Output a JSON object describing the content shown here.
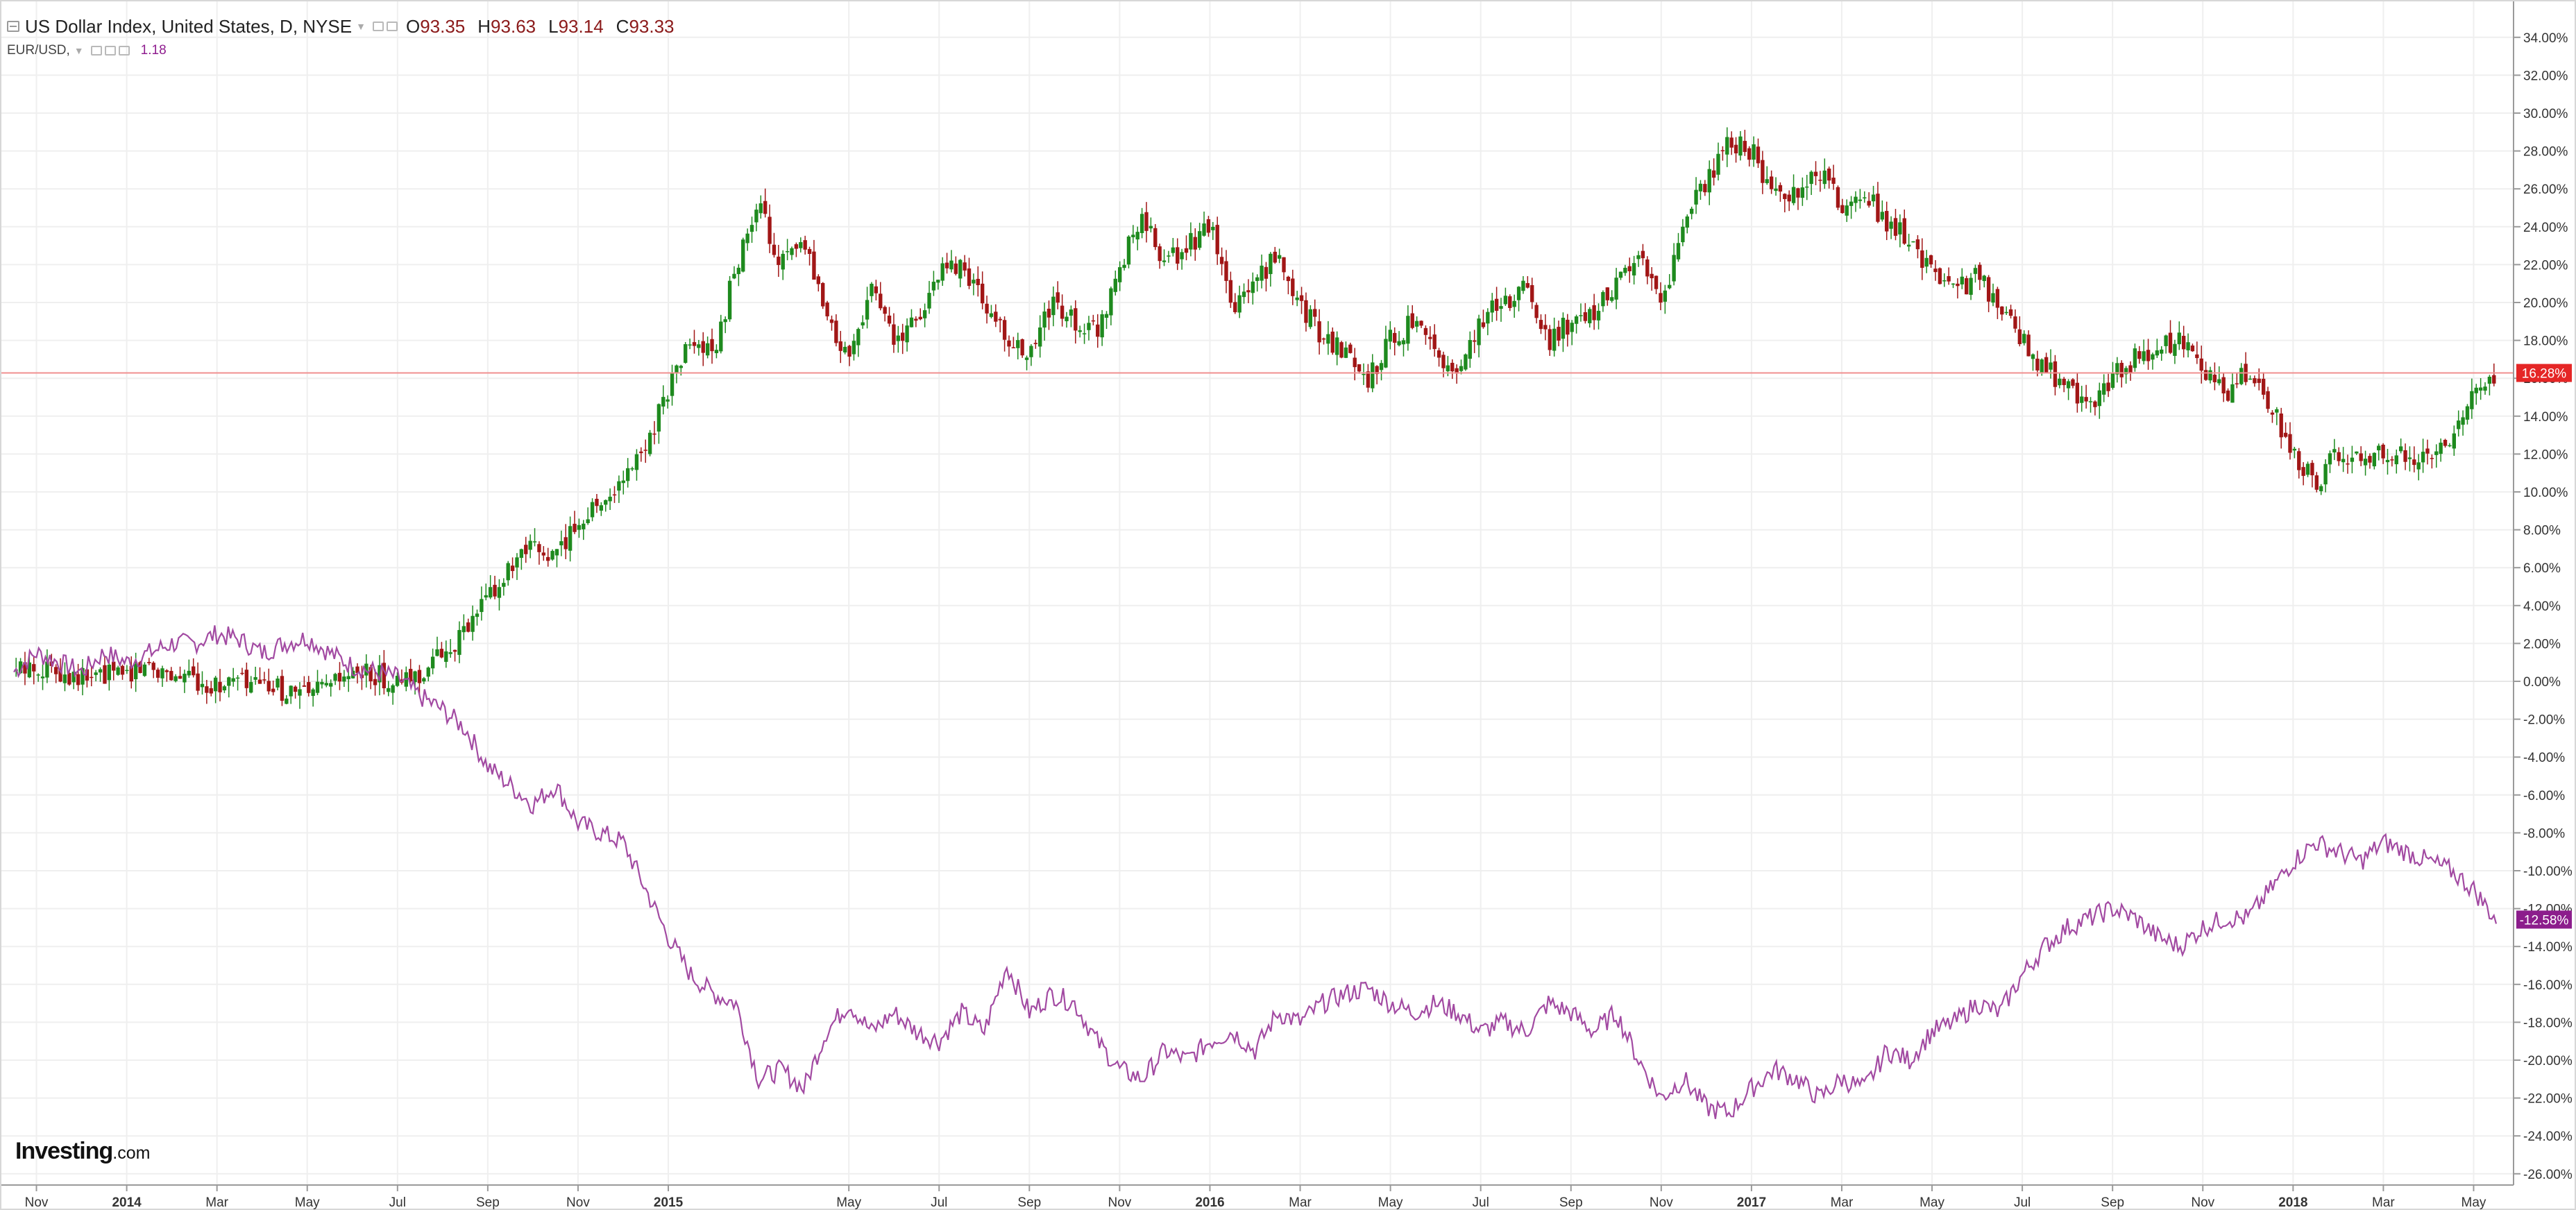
{
  "legend": {
    "symbol_title": "US Dollar Index, United States, D, NYSE",
    "ohlc": [
      {
        "key": "O",
        "value": "93.35"
      },
      {
        "key": "H",
        "value": "93.63"
      },
      {
        "key": "L",
        "value": "93.14"
      },
      {
        "key": "C",
        "value": "93.33"
      }
    ],
    "compare_symbol": "EUR/USD,",
    "compare_value": "1.18"
  },
  "branding": {
    "name": "Investing",
    "suffix": ".com"
  },
  "colors": {
    "up_candle": "#1e8a1e",
    "down_candle": "#a11616",
    "eurusd_line": "#a24aa2",
    "last_price_line": "#f08f8f",
    "last_badge_main": "#e52626",
    "last_badge_compare": "#8c1d8c"
  },
  "chart_data": {
    "type": "line",
    "title": "",
    "ylabel": "",
    "xlabel": "",
    "y_unit": "percent change",
    "ylim": [
      -26,
      35
    ],
    "y_ticks": [
      34,
      32,
      30,
      28,
      26,
      24,
      22,
      20,
      18,
      16,
      14,
      12,
      10,
      8,
      6,
      4,
      2,
      0,
      -2,
      -4,
      -6,
      -8,
      -10,
      -12,
      -14,
      -16,
      -18,
      -20,
      -22,
      -24,
      -26
    ],
    "y_tick_labels": [
      "34.00%",
      "32.00%",
      "30.00%",
      "28.00%",
      "26.00%",
      "24.00%",
      "22.00%",
      "20.00%",
      "18.00%",
      "16.00%",
      "14.00%",
      "12.00%",
      "10.00%",
      "8.00%",
      "6.00%",
      "4.00%",
      "2.00%",
      "0.00%",
      "-2.00%",
      "-4.00%",
      "-6.00%",
      "-8.00%",
      "-10.00%",
      "-12.00%",
      "-14.00%",
      "-16.00%",
      "-18.00%",
      "-20.00%",
      "-22.00%",
      "-24.00%",
      "-26.00%"
    ],
    "x_ticks": [
      {
        "label": "Nov",
        "t": 0.5
      },
      {
        "label": "2014",
        "t": 2.5,
        "bold": true
      },
      {
        "label": "Mar",
        "t": 4.5
      },
      {
        "label": "May",
        "t": 6.5
      },
      {
        "label": "Jul",
        "t": 8.5
      },
      {
        "label": "Sep",
        "t": 10.5
      },
      {
        "label": "Nov",
        "t": 12.5
      },
      {
        "label": "2015",
        "t": 14.5,
        "bold": true
      },
      {
        "label": "May",
        "t": 18.5
      },
      {
        "label": "Jul",
        "t": 20.5
      },
      {
        "label": "Sep",
        "t": 22.5
      },
      {
        "label": "Nov",
        "t": 24.5
      },
      {
        "label": "2016",
        "t": 26.5,
        "bold": true
      },
      {
        "label": "Mar",
        "t": 28.5
      },
      {
        "label": "May",
        "t": 30.5
      },
      {
        "label": "Jul",
        "t": 32.5
      },
      {
        "label": "Sep",
        "t": 34.5
      },
      {
        "label": "Nov",
        "t": 36.5
      },
      {
        "label": "2017",
        "t": 38.5,
        "bold": true
      },
      {
        "label": "Mar",
        "t": 40.5
      },
      {
        "label": "May",
        "t": 42.5
      },
      {
        "label": "Jul",
        "t": 44.5
      },
      {
        "label": "Sep",
        "t": 46.5
      },
      {
        "label": "Nov",
        "t": 48.5
      },
      {
        "label": "2018",
        "t": 50.5,
        "bold": true
      },
      {
        "label": "Mar",
        "t": 52.5
      },
      {
        "label": "May",
        "t": 54.5
      }
    ],
    "x_range_months": [
      0,
      55.2
    ],
    "mar_2015_note": "",
    "series": [
      {
        "name": "US Dollar Index",
        "style": "candlestick",
        "last_value_label": "16.28%",
        "last_value": 16.28,
        "points": [
          [
            0,
            0.5
          ],
          [
            0.5,
            0.8
          ],
          [
            1,
            0.6
          ],
          [
            1.5,
            0.2
          ],
          [
            2,
            0.3
          ],
          [
            2.5,
            0.5
          ],
          [
            3,
            0.9
          ],
          [
            3.5,
            0.4
          ],
          [
            4,
            0.1
          ],
          [
            4.5,
            -0.2
          ],
          [
            5,
            0.0
          ],
          [
            5.5,
            -0.3
          ],
          [
            6,
            -0.5
          ],
          [
            6.5,
            -0.8
          ],
          [
            7,
            -0.3
          ],
          [
            7.5,
            0.3
          ],
          [
            8,
            0.4
          ],
          [
            8.5,
            -0.2
          ],
          [
            9,
            0.4
          ],
          [
            9.5,
            1.5
          ],
          [
            10,
            2.5
          ],
          [
            10.5,
            4.5
          ],
          [
            11,
            5.8
          ],
          [
            11.5,
            7
          ],
          [
            12,
            6.5
          ],
          [
            12.5,
            8.5
          ],
          [
            13,
            9.5
          ],
          [
            13.5,
            10.5
          ],
          [
            14,
            12.5
          ],
          [
            14.5,
            15.5
          ],
          [
            15,
            18
          ],
          [
            15.5,
            17
          ],
          [
            16,
            22
          ],
          [
            16.5,
            25
          ],
          [
            17,
            22
          ],
          [
            17.5,
            23
          ],
          [
            18,
            19
          ],
          [
            18.5,
            17
          ],
          [
            19,
            21
          ],
          [
            19.5,
            18
          ],
          [
            20,
            19
          ],
          [
            20.5,
            21.5
          ],
          [
            21,
            22
          ],
          [
            21.5,
            20
          ],
          [
            22,
            18
          ],
          [
            22.5,
            17
          ],
          [
            23,
            20
          ],
          [
            23.5,
            19
          ],
          [
            24,
            18.5
          ],
          [
            24.5,
            22
          ],
          [
            25,
            24.5
          ],
          [
            25.5,
            22
          ],
          [
            26,
            23
          ],
          [
            26.5,
            24
          ],
          [
            27,
            19.5
          ],
          [
            27.5,
            21
          ],
          [
            28,
            22.5
          ],
          [
            28.5,
            20
          ],
          [
            29,
            18
          ],
          [
            29.5,
            17.5
          ],
          [
            30,
            16
          ],
          [
            30.5,
            18
          ],
          [
            31,
            19
          ],
          [
            31.5,
            17
          ],
          [
            32,
            16.5
          ],
          [
            32.5,
            19
          ],
          [
            33,
            20
          ],
          [
            33.5,
            21
          ],
          [
            34,
            18
          ],
          [
            34.5,
            19
          ],
          [
            35,
            19.5
          ],
          [
            35.5,
            21
          ],
          [
            36,
            23
          ],
          [
            36.5,
            20
          ],
          [
            37,
            24
          ],
          [
            37.5,
            26.5
          ],
          [
            38,
            28.5
          ],
          [
            38.5,
            28
          ],
          [
            39,
            25.5
          ],
          [
            39.5,
            26
          ],
          [
            40,
            27
          ],
          [
            40.5,
            25
          ],
          [
            41,
            26
          ],
          [
            41.5,
            24
          ],
          [
            42,
            23.5
          ],
          [
            42.5,
            21.5
          ],
          [
            43,
            20.5
          ],
          [
            43.5,
            21.5
          ],
          [
            44,
            19.5
          ],
          [
            44.5,
            18
          ],
          [
            45,
            16.5
          ],
          [
            45.5,
            15.5
          ],
          [
            46,
            14.5
          ],
          [
            46.5,
            16
          ],
          [
            47,
            17
          ],
          [
            47.5,
            17.5
          ],
          [
            48,
            18
          ],
          [
            48.5,
            16.5
          ],
          [
            49,
            15
          ],
          [
            49.5,
            16.5
          ],
          [
            50,
            14.5
          ],
          [
            50.5,
            12
          ],
          [
            51,
            10.5
          ],
          [
            51.5,
            12
          ],
          [
            52,
            11.5
          ],
          [
            52.5,
            12
          ],
          [
            53,
            12
          ],
          [
            53.5,
            11.5
          ],
          [
            54,
            13
          ],
          [
            54.5,
            15.5
          ],
          [
            55,
            16.3
          ]
        ]
      },
      {
        "name": "EUR/USD",
        "style": "line",
        "last_value_label": "-12.58%",
        "last_value": -12.58,
        "points": [
          [
            0,
            0.5
          ],
          [
            0.5,
            1.5
          ],
          [
            1,
            1.0
          ],
          [
            1.5,
            0.5
          ],
          [
            2,
            1.5
          ],
          [
            2.5,
            1.0
          ],
          [
            3,
            1.5
          ],
          [
            3.5,
            2.0
          ],
          [
            4,
            2.0
          ],
          [
            4.5,
            2.5
          ],
          [
            5,
            2.2
          ],
          [
            5.5,
            1.5
          ],
          [
            6,
            2.0
          ],
          [
            6.5,
            2.3
          ],
          [
            7,
            1.5
          ],
          [
            7.5,
            0.8
          ],
          [
            8,
            0.5
          ],
          [
            8.5,
            0.2
          ],
          [
            9,
            -0.8
          ],
          [
            9.5,
            -1.5
          ],
          [
            10,
            -2.5
          ],
          [
            10.5,
            -4.5
          ],
          [
            11,
            -5.5
          ],
          [
            11.5,
            -6.5
          ],
          [
            12,
            -5.5
          ],
          [
            12.5,
            -7.5
          ],
          [
            13,
            -8
          ],
          [
            13.5,
            -8.5
          ],
          [
            14,
            -11
          ],
          [
            14.5,
            -13.5
          ],
          [
            15,
            -15.5
          ],
          [
            15.5,
            -16.5
          ],
          [
            16,
            -17
          ],
          [
            16.5,
            -21
          ],
          [
            17,
            -20.5
          ],
          [
            17.5,
            -21.5
          ],
          [
            18,
            -18.5
          ],
          [
            18.5,
            -17
          ],
          [
            19,
            -18.5
          ],
          [
            19.5,
            -17.5
          ],
          [
            20,
            -18.5
          ],
          [
            20.5,
            -19
          ],
          [
            21,
            -17.5
          ],
          [
            21.5,
            -18.5
          ],
          [
            22,
            -15
          ],
          [
            22.5,
            -17.5
          ],
          [
            23,
            -16.5
          ],
          [
            23.5,
            -17
          ],
          [
            24,
            -19
          ],
          [
            24.5,
            -20.5
          ],
          [
            25,
            -21
          ],
          [
            25.5,
            -19.5
          ],
          [
            26,
            -20
          ],
          [
            26.5,
            -19
          ],
          [
            27,
            -18.5
          ],
          [
            27.5,
            -19.5
          ],
          [
            28,
            -17.5
          ],
          [
            28.5,
            -18
          ],
          [
            29,
            -17
          ],
          [
            29.5,
            -16.5
          ],
          [
            30,
            -16.2
          ],
          [
            30.5,
            -17
          ],
          [
            31,
            -17.5
          ],
          [
            31.5,
            -17
          ],
          [
            32,
            -17.5
          ],
          [
            32.5,
            -18.5
          ],
          [
            33,
            -18
          ],
          [
            33.5,
            -18.5
          ],
          [
            34,
            -17
          ],
          [
            34.5,
            -17.5
          ],
          [
            35,
            -18.5
          ],
          [
            35.5,
            -17.5
          ],
          [
            36,
            -20
          ],
          [
            36.5,
            -22
          ],
          [
            37,
            -21
          ],
          [
            37.5,
            -22.5
          ],
          [
            38,
            -22.8
          ],
          [
            38.5,
            -21.5
          ],
          [
            39,
            -20.5
          ],
          [
            39.5,
            -21
          ],
          [
            40,
            -22
          ],
          [
            40.5,
            -21
          ],
          [
            41,
            -21.5
          ],
          [
            41.5,
            -19.5
          ],
          [
            42,
            -20
          ],
          [
            42.5,
            -18.5
          ],
          [
            43,
            -18
          ],
          [
            43.5,
            -17
          ],
          [
            44,
            -17.5
          ],
          [
            44.5,
            -15.5
          ],
          [
            45,
            -14
          ],
          [
            45.5,
            -13
          ],
          [
            46,
            -12.5
          ],
          [
            46.5,
            -12
          ],
          [
            47,
            -12.5
          ],
          [
            47.5,
            -13.5
          ],
          [
            48,
            -14
          ],
          [
            48.5,
            -13
          ],
          [
            49,
            -12.5
          ],
          [
            49.5,
            -12.5
          ],
          [
            50,
            -11
          ],
          [
            50.5,
            -9.5
          ],
          [
            51,
            -8.5
          ],
          [
            51.5,
            -9
          ],
          [
            52,
            -9.5
          ],
          [
            52.5,
            -8.5
          ],
          [
            53,
            -9
          ],
          [
            53.5,
            -9.5
          ],
          [
            54,
            -10
          ],
          [
            54.5,
            -11
          ],
          [
            55,
            -12.6
          ]
        ]
      }
    ]
  }
}
